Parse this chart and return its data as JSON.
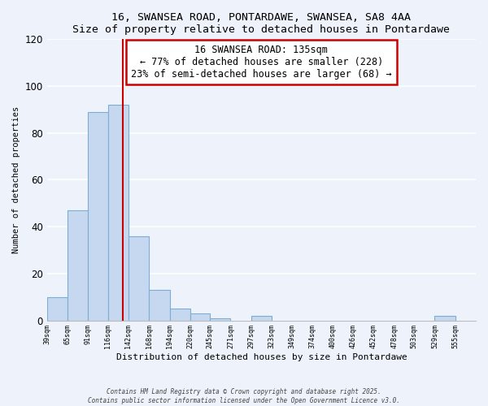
{
  "title": "16, SWANSEA ROAD, PONTARDAWE, SWANSEA, SA8 4AA",
  "subtitle": "Size of property relative to detached houses in Pontardawe",
  "xlabel": "Distribution of detached houses by size in Pontardawe",
  "ylabel": "Number of detached properties",
  "bin_labels": [
    "39sqm",
    "65sqm",
    "91sqm",
    "116sqm",
    "142sqm",
    "168sqm",
    "194sqm",
    "220sqm",
    "245sqm",
    "271sqm",
    "297sqm",
    "323sqm",
    "349sqm",
    "374sqm",
    "400sqm",
    "426sqm",
    "452sqm",
    "478sqm",
    "503sqm",
    "529sqm",
    "555sqm"
  ],
  "bar_values": [
    10,
    47,
    89,
    92,
    36,
    13,
    5,
    3,
    1,
    0,
    2,
    0,
    0,
    0,
    0,
    0,
    0,
    0,
    0,
    2,
    0
  ],
  "bar_color": "#c5d8f0",
  "bar_edge_color": "#7eadd4",
  "bin_edges": [
    39,
    65,
    91,
    116,
    142,
    168,
    194,
    220,
    245,
    271,
    297,
    323,
    349,
    374,
    400,
    426,
    452,
    478,
    503,
    529,
    555,
    581
  ],
  "annotation_text_line1": "16 SWANSEA ROAD: 135sqm",
  "annotation_text_line2": "← 77% of detached houses are smaller (228)",
  "annotation_text_line3": "23% of semi-detached houses are larger (68) →",
  "annotation_box_color": "#ffffff",
  "annotation_box_edge_color": "#cc0000",
  "vline_color": "#cc0000",
  "footer_line1": "Contains HM Land Registry data © Crown copyright and database right 2025.",
  "footer_line2": "Contains public sector information licensed under the Open Government Licence v3.0.",
  "ylim": [
    0,
    120
  ],
  "bg_color": "#edf2fb",
  "grid_color": "#ffffff",
  "vline_x": 135,
  "yticks": [
    0,
    20,
    40,
    60,
    80,
    100,
    120
  ]
}
